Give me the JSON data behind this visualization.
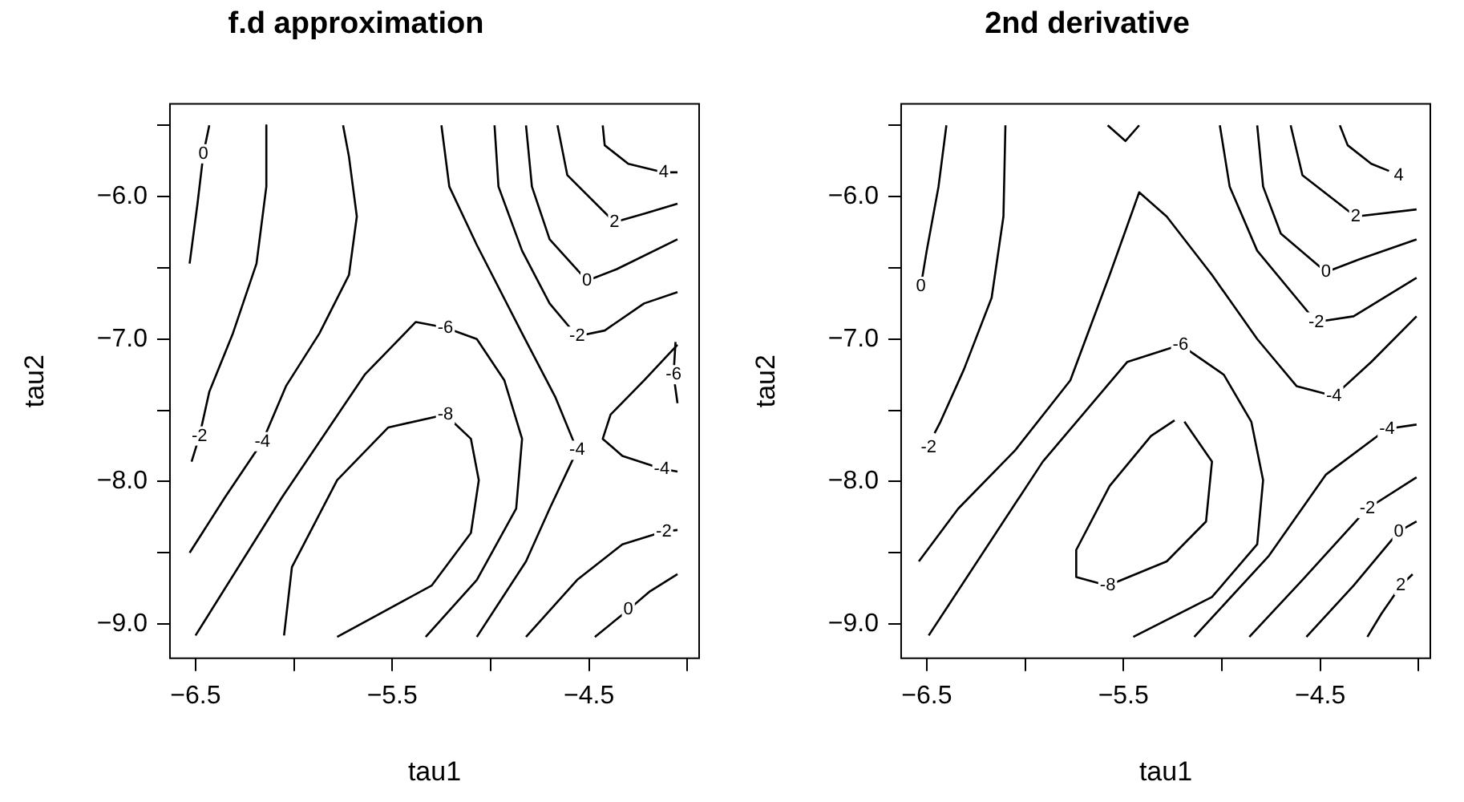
{
  "chart_data": [
    {
      "type": "line",
      "title": "f.d approximation",
      "xlabel": "tau1",
      "ylabel": "tau2",
      "xlim": [
        -6.63,
        -3.94
      ],
      "ylim": [
        -9.24,
        -5.35
      ],
      "xticks": [
        {
          "value": -6.5,
          "label": "−6.5"
        },
        {
          "value": -6,
          "label": null
        },
        {
          "value": -5.5,
          "label": "−5.5"
        },
        {
          "value": -5,
          "label": null
        },
        {
          "value": -4.5,
          "label": "−4.5"
        },
        {
          "value": -4,
          "label": null
        }
      ],
      "yticks": [
        {
          "value": -5.5,
          "label": null
        },
        {
          "value": -6,
          "label": "−6.0"
        },
        {
          "value": -6.5,
          "label": null
        },
        {
          "value": -7,
          "label": "−7.0"
        },
        {
          "value": -7.5,
          "label": null
        },
        {
          "value": -8,
          "label": "−8.0"
        },
        {
          "value": -8.5,
          "label": null
        },
        {
          "value": -9,
          "label": "−9.0"
        }
      ],
      "series": [
        {
          "color": "#000000",
          "x": [
            -6.43,
            -6.46,
            -6.49,
            -6.53
          ],
          "values": [
            -5.5,
            -5.7,
            -6.05,
            -6.47
          ]
        },
        {
          "color": "#000000",
          "x": [
            -6.14,
            -6.14,
            -6.19,
            -6.31,
            -6.43,
            -6.48,
            -6.52
          ],
          "values": [
            -5.5,
            -5.93,
            -6.47,
            -6.96,
            -7.37,
            -7.68,
            -7.86
          ]
        },
        {
          "color": "#000000",
          "x": [
            -5.75,
            -5.72,
            -5.68,
            -5.72,
            -5.87,
            -6.04,
            -6.16,
            -6.35,
            -6.53
          ],
          "values": [
            -5.5,
            -5.72,
            -6.14,
            -6.55,
            -6.96,
            -7.33,
            -7.72,
            -8.11,
            -8.5
          ]
        },
        {
          "color": "#000000",
          "x": [
            -6.5,
            -6.06,
            -5.64,
            -5.38,
            -5.23,
            -5.07,
            -4.93,
            -4.84,
            -4.87,
            -5.07,
            -5.33
          ],
          "values": [
            -9.08,
            -8.11,
            -7.25,
            -6.88,
            -6.92,
            -7.0,
            -7.29,
            -7.7,
            -8.19,
            -8.69,
            -9.09
          ]
        },
        {
          "color": "#000000",
          "x": [
            -6.05,
            -6.01,
            -5.78,
            -5.52,
            -5.23,
            -5.1,
            -5.06,
            -5.1,
            -5.3,
            -5.78
          ],
          "values": [
            -9.08,
            -8.6,
            -7.99,
            -7.62,
            -7.53,
            -7.7,
            -7.99,
            -8.36,
            -8.73,
            -9.09
          ]
        },
        {
          "color": "#000000",
          "x": [
            -5.25,
            -5.21,
            -5.07,
            -4.84,
            -4.67,
            -4.56,
            -4.7,
            -4.82,
            -5.07
          ],
          "values": [
            -5.5,
            -5.93,
            -6.34,
            -6.96,
            -7.41,
            -7.78,
            -8.19,
            -8.56,
            -9.09
          ]
        },
        {
          "color": "#000000",
          "x": [
            -4.05,
            -4.22,
            -4.39,
            -4.43,
            -4.33,
            -4.13,
            -4.05
          ],
          "values": [
            -7.04,
            -7.29,
            -7.53,
            -7.7,
            -7.82,
            -7.91,
            -7.93
          ]
        },
        {
          "color": "#000000",
          "x": [
            -4.06,
            -4.07,
            -4.05
          ],
          "values": [
            -7.02,
            -7.25,
            -7.45
          ]
        },
        {
          "color": "#000000",
          "x": [
            -4.98,
            -4.96,
            -4.84,
            -4.7,
            -4.56,
            -4.42,
            -4.22,
            -4.05
          ],
          "values": [
            -5.5,
            -5.93,
            -6.38,
            -6.75,
            -6.98,
            -6.94,
            -6.75,
            -6.67
          ]
        },
        {
          "color": "#000000",
          "x": [
            -4.82,
            -4.79,
            -4.7,
            -4.51,
            -4.36,
            -4.05
          ],
          "values": [
            -5.5,
            -5.93,
            -6.3,
            -6.59,
            -6.51,
            -6.3
          ]
        },
        {
          "color": "#000000",
          "x": [
            -4.66,
            -4.61,
            -4.37,
            -4.22,
            -4.05
          ],
          "values": [
            -5.5,
            -5.85,
            -6.18,
            -6.12,
            -6.05
          ]
        },
        {
          "color": "#000000",
          "x": [
            -4.43,
            -4.42,
            -4.3,
            -4.12,
            -4.05
          ],
          "values": [
            -5.5,
            -5.64,
            -5.77,
            -5.83,
            -5.83
          ]
        },
        {
          "color": "#000000",
          "x": [
            -4.82,
            -4.56,
            -4.33,
            -4.12,
            -4.05
          ],
          "values": [
            -9.09,
            -8.69,
            -8.44,
            -8.35,
            -8.34
          ]
        },
        {
          "color": "#000000",
          "x": [
            -4.47,
            -4.3,
            -4.19,
            -4.05
          ],
          "values": [
            -9.09,
            -8.9,
            -8.77,
            -8.65
          ]
        }
      ],
      "annotations": [
        {
          "text": "0",
          "x": -6.46,
          "y": -5.7
        },
        {
          "text": "-2",
          "x": -6.48,
          "y": -7.68
        },
        {
          "text": "-4",
          "x": -6.16,
          "y": -7.72
        },
        {
          "text": "-6",
          "x": -5.23,
          "y": -6.92
        },
        {
          "text": "-8",
          "x": -5.23,
          "y": -7.53
        },
        {
          "text": "-4",
          "x": -4.56,
          "y": -7.78
        },
        {
          "text": "-4",
          "x": -4.13,
          "y": -7.91
        },
        {
          "text": "-6",
          "x": -4.07,
          "y": -7.25
        },
        {
          "text": "-2",
          "x": -4.56,
          "y": -6.98
        },
        {
          "text": "0",
          "x": -4.51,
          "y": -6.59
        },
        {
          "text": "2",
          "x": -4.37,
          "y": -6.18
        },
        {
          "text": "4",
          "x": -4.12,
          "y": -5.83
        },
        {
          "text": "-2",
          "x": -4.12,
          "y": -8.35
        },
        {
          "text": "0",
          "x": -4.3,
          "y": -8.9
        }
      ]
    },
    {
      "type": "line",
      "title": "2nd derivative",
      "xlabel": "tau1",
      "ylabel": "tau2",
      "xlim": [
        -6.63,
        -3.94
      ],
      "ylim": [
        -9.24,
        -5.35
      ],
      "xticks": [
        {
          "value": -6.5,
          "label": "−6.5"
        },
        {
          "value": -6,
          "label": null
        },
        {
          "value": -5.5,
          "label": "−5.5"
        },
        {
          "value": -5,
          "label": null
        },
        {
          "value": -4.5,
          "label": "−4.5"
        },
        {
          "value": -4,
          "label": null
        }
      ],
      "yticks": [
        {
          "value": -5.5,
          "label": null
        },
        {
          "value": -6,
          "label": "−6.0"
        },
        {
          "value": -6.5,
          "label": null
        },
        {
          "value": -7,
          "label": "−7.0"
        },
        {
          "value": -7.5,
          "label": null
        },
        {
          "value": -8,
          "label": "−8.0"
        },
        {
          "value": -8.5,
          "label": null
        },
        {
          "value": -9,
          "label": "−9.0"
        }
      ],
      "series": [
        {
          "color": "#000000",
          "x": [
            -6.4,
            -6.44,
            -6.5,
            -6.53
          ],
          "values": [
            -5.5,
            -5.93,
            -6.38,
            -6.63
          ]
        },
        {
          "color": "#000000",
          "x": [
            -6.1,
            -6.11,
            -6.17,
            -6.31,
            -6.43,
            -6.46
          ],
          "values": [
            -5.5,
            -6.14,
            -6.71,
            -7.21,
            -7.58,
            -7.66
          ]
        },
        {
          "color": "#000000",
          "x": [
            -6.54,
            -6.34,
            -6.05,
            -5.77,
            -5.57,
            -5.42,
            -5.28,
            -5.05,
            -4.82,
            -4.62,
            -4.43,
            -4.24,
            -4.01
          ],
          "values": [
            -8.56,
            -8.19,
            -7.78,
            -7.29,
            -6.55,
            -5.97,
            -6.14,
            -6.55,
            -7.0,
            -7.33,
            -7.4,
            -7.16,
            -6.84
          ]
        },
        {
          "color": "#000000",
          "x": [
            -6.49,
            -5.91,
            -5.48,
            -5.21,
            -4.99,
            -4.85,
            -4.79,
            -4.82,
            -5.05,
            -5.45
          ],
          "values": [
            -9.08,
            -7.86,
            -7.16,
            -7.04,
            -7.25,
            -7.58,
            -7.99,
            -8.44,
            -8.81,
            -9.09
          ]
        },
        {
          "color": "#000000",
          "x": [
            -5.19,
            -5.05,
            -5.08,
            -5.28,
            -5.58,
            -5.74,
            -5.74,
            -5.57,
            -5.36,
            -5.24
          ],
          "values": [
            -7.58,
            -7.86,
            -8.28,
            -8.56,
            -8.73,
            -8.67,
            -8.48,
            -8.03,
            -7.68,
            -7.57
          ]
        },
        {
          "color": "#000000",
          "x": [
            -5.58,
            -5.49,
            -5.42
          ],
          "values": [
            -5.5,
            -5.61,
            -5.5
          ]
        },
        {
          "color": "#000000",
          "x": [
            -5.01,
            -4.96,
            -4.82,
            -4.52,
            -4.33,
            -4.01
          ],
          "values": [
            -5.5,
            -5.93,
            -6.38,
            -6.88,
            -6.84,
            -6.57
          ]
        },
        {
          "color": "#000000",
          "x": [
            -4.82,
            -4.79,
            -4.7,
            -4.47,
            -4.3,
            -4.01
          ],
          "values": [
            -5.5,
            -5.93,
            -6.26,
            -6.53,
            -6.44,
            -6.3
          ]
        },
        {
          "color": "#000000",
          "x": [
            -4.65,
            -4.59,
            -4.32,
            -4.01
          ],
          "values": [
            -5.5,
            -5.85,
            -6.14,
            -6.09
          ]
        },
        {
          "color": "#000000",
          "x": [
            -4.4,
            -4.36,
            -4.24,
            -4.15
          ],
          "values": [
            -5.5,
            -5.64,
            -5.77,
            -5.82
          ]
        },
        {
          "color": "#000000",
          "x": [
            -5.14,
            -4.76,
            -4.47,
            -4.16,
            -4.01
          ],
          "values": [
            -9.09,
            -8.52,
            -7.95,
            -7.63,
            -7.6
          ]
        },
        {
          "color": "#000000",
          "x": [
            -4.86,
            -4.59,
            -4.26,
            -4.01
          ],
          "values": [
            -9.09,
            -8.69,
            -8.19,
            -7.97
          ]
        },
        {
          "color": "#000000",
          "x": [
            -4.57,
            -4.33,
            -4.1,
            -4.01
          ],
          "values": [
            -9.09,
            -8.73,
            -8.35,
            -8.28
          ]
        },
        {
          "color": "#000000",
          "x": [
            -4.26,
            -4.19,
            -4.09,
            -4.03
          ],
          "values": [
            -9.09,
            -8.93,
            -8.73,
            -8.65
          ]
        }
      ],
      "annotations": [
        {
          "text": "0",
          "x": -6.53,
          "y": -6.63
        },
        {
          "text": "-2",
          "x": -6.49,
          "y": -7.76
        },
        {
          "text": "-4",
          "x": -4.43,
          "y": -7.4
        },
        {
          "text": "-6",
          "x": -5.21,
          "y": -7.04
        },
        {
          "text": "-8",
          "x": -5.58,
          "y": -8.73
        },
        {
          "text": "-2",
          "x": -4.52,
          "y": -6.88
        },
        {
          "text": "0",
          "x": -4.47,
          "y": -6.53
        },
        {
          "text": "2",
          "x": -4.32,
          "y": -6.14
        },
        {
          "text": "4",
          "x": -4.1,
          "y": -5.85
        },
        {
          "text": "-4",
          "x": -4.16,
          "y": -7.63
        },
        {
          "text": "-2",
          "x": -4.26,
          "y": -8.19
        },
        {
          "text": "0",
          "x": -4.1,
          "y": -8.35
        },
        {
          "text": "2",
          "x": -4.09,
          "y": -8.73
        }
      ]
    }
  ]
}
